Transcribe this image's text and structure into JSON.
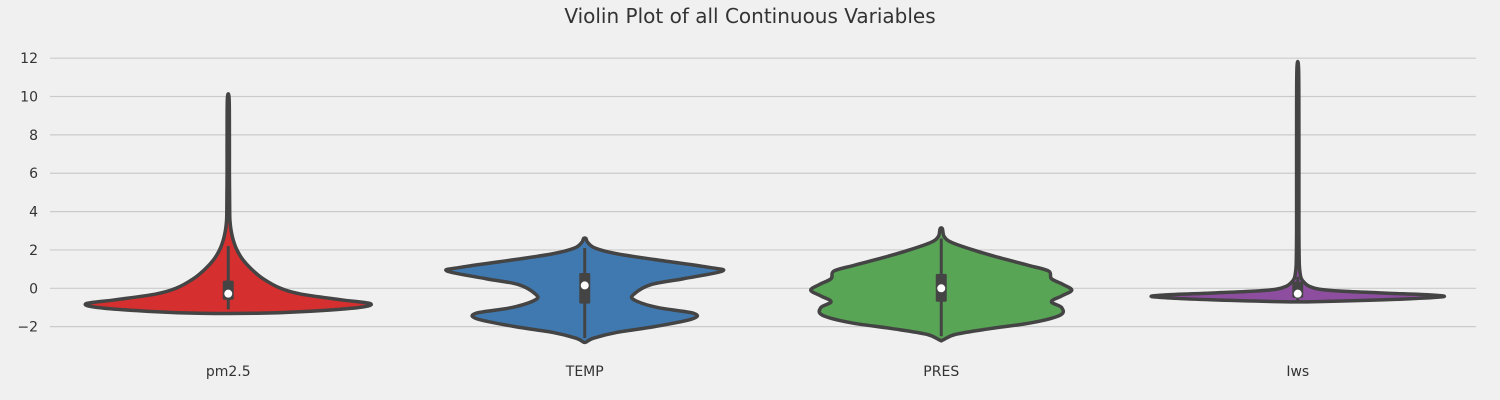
{
  "chart_data": {
    "type": "violin",
    "title": "Violin Plot of all Continuous Variables",
    "xlabel": "",
    "ylabel": "",
    "ylim": [
      -2.8,
      13
    ],
    "y_ticks": [
      -2,
      0,
      2,
      4,
      6,
      8,
      10,
      12
    ],
    "y_tick_labels": [
      "−2",
      "0",
      "2",
      "4",
      "6",
      "8",
      "10",
      "12"
    ],
    "grid": "horizontal",
    "categories": [
      "pm2.5",
      "TEMP",
      "PRES",
      "Iws"
    ],
    "series": [
      {
        "category": "pm2.5",
        "color": "#d62f2f",
        "min": -1.3,
        "max": 9.9,
        "q1": -0.6,
        "median": -0.28,
        "q3": 0.4,
        "whisker_low": -1.1,
        "whisker_high": 2.2,
        "density": [
          [
            -1.3,
            0.2
          ],
          [
            -1.2,
            0.55
          ],
          [
            -1.0,
            0.9
          ],
          [
            -0.8,
            0.98
          ],
          [
            -0.6,
            0.78
          ],
          [
            -0.3,
            0.5
          ],
          [
            0.0,
            0.36
          ],
          [
            0.5,
            0.24
          ],
          [
            1.0,
            0.16
          ],
          [
            1.5,
            0.1
          ],
          [
            2.0,
            0.06
          ],
          [
            2.5,
            0.035
          ],
          [
            3.0,
            0.02
          ],
          [
            3.5,
            0.012
          ],
          [
            4.0,
            0.01
          ],
          [
            5.0,
            0.009
          ],
          [
            6.0,
            0.008
          ],
          [
            8.0,
            0.008
          ],
          [
            9.9,
            0.006
          ]
        ]
      },
      {
        "category": "TEMP",
        "color": "#3f79b0",
        "min": -2.8,
        "max": 2.6,
        "q1": -0.8,
        "median": 0.15,
        "q3": 0.8,
        "whisker_low": -2.6,
        "whisker_high": 2.1,
        "density": [
          [
            -2.8,
            0.01
          ],
          [
            -2.6,
            0.06
          ],
          [
            -2.3,
            0.22
          ],
          [
            -2.0,
            0.48
          ],
          [
            -1.6,
            0.74
          ],
          [
            -1.3,
            0.75
          ],
          [
            -1.0,
            0.5
          ],
          [
            -0.6,
            0.34
          ],
          [
            -0.3,
            0.34
          ],
          [
            0.2,
            0.46
          ],
          [
            0.5,
            0.68
          ],
          [
            0.9,
            0.95
          ],
          [
            1.1,
            0.85
          ],
          [
            1.5,
            0.48
          ],
          [
            1.8,
            0.22
          ],
          [
            2.1,
            0.07
          ],
          [
            2.4,
            0.02
          ],
          [
            2.6,
            0.008
          ]
        ]
      },
      {
        "category": "PRES",
        "color": "#59a556",
        "min": -2.7,
        "max": 3.1,
        "q1": -0.7,
        "median": 0.0,
        "q3": 0.75,
        "whisker_low": -2.5,
        "whisker_high": 2.6,
        "density": [
          [
            -2.7,
            0.01
          ],
          [
            -2.4,
            0.1
          ],
          [
            -2.1,
            0.34
          ],
          [
            -1.8,
            0.62
          ],
          [
            -1.4,
            0.82
          ],
          [
            -1.0,
            0.83
          ],
          [
            -0.7,
            0.76
          ],
          [
            -0.4,
            0.83
          ],
          [
            -0.1,
            0.9
          ],
          [
            0.2,
            0.84
          ],
          [
            0.5,
            0.76
          ],
          [
            0.9,
            0.74
          ],
          [
            1.2,
            0.6
          ],
          [
            1.6,
            0.4
          ],
          [
            2.0,
            0.22
          ],
          [
            2.4,
            0.07
          ],
          [
            2.7,
            0.02
          ],
          [
            3.1,
            0.008
          ]
        ]
      },
      {
        "category": "Iws",
        "color": "#8e4ea0",
        "min": -0.7,
        "max": 11.4,
        "q1": -0.5,
        "median": -0.28,
        "q3": 0.35,
        "whisker_low": -0.7,
        "whisker_high": 0.6,
        "density": [
          [
            -0.7,
            0.1
          ],
          [
            -0.6,
            0.6
          ],
          [
            -0.45,
            0.99
          ],
          [
            -0.35,
            0.92
          ],
          [
            -0.25,
            0.6
          ],
          [
            -0.15,
            0.3
          ],
          [
            -0.05,
            0.15
          ],
          [
            0.1,
            0.08
          ],
          [
            0.3,
            0.045
          ],
          [
            0.5,
            0.025
          ],
          [
            0.8,
            0.016
          ],
          [
            1.2,
            0.011
          ],
          [
            2.0,
            0.009
          ],
          [
            3.0,
            0.008
          ],
          [
            5.0,
            0.008
          ],
          [
            8.0,
            0.008
          ],
          [
            11.4,
            0.006
          ]
        ]
      }
    ]
  }
}
